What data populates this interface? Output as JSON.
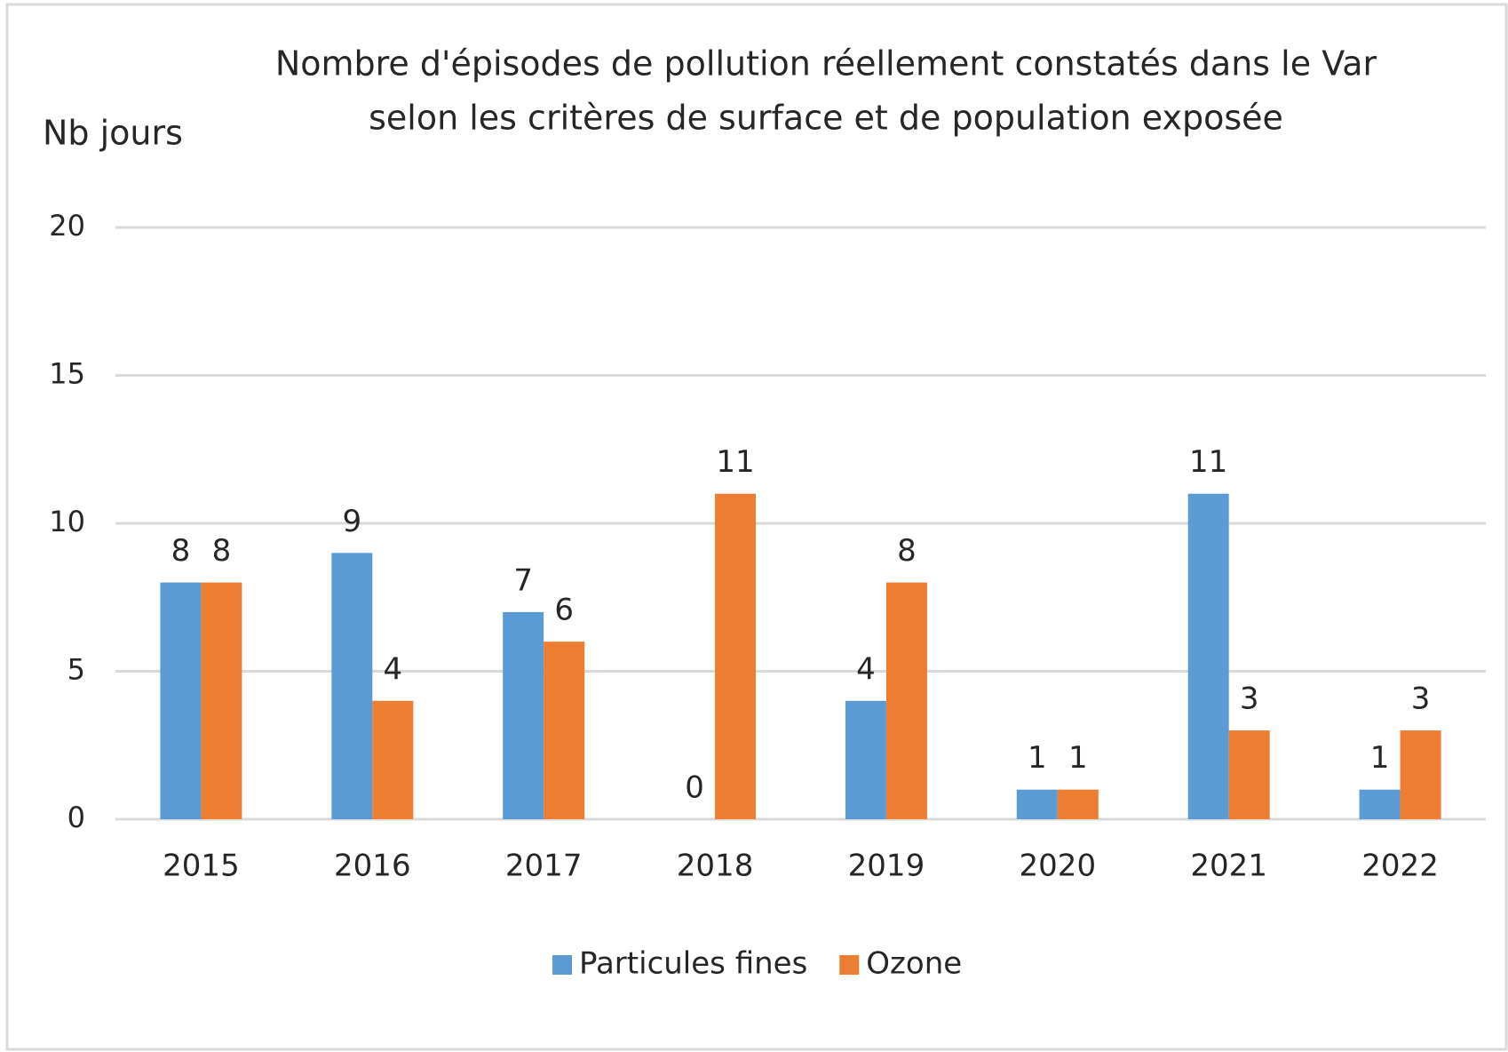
{
  "chart_data": {
    "type": "bar",
    "title": [
      "Nombre d'épisodes de pollution réellement constatés dans le Var",
      "selon les critères de surface et de population exposée"
    ],
    "y_label": "Nb jours",
    "categories": [
      "2015",
      "2016",
      "2017",
      "2018",
      "2019",
      "2020",
      "2021",
      "2022"
    ],
    "series": [
      {
        "name": "Particules fines",
        "color": "#5b9bd5",
        "values": [
          8,
          9,
          7,
          0,
          4,
          1,
          11,
          1
        ]
      },
      {
        "name": "Ozone",
        "color": "#ed7d31",
        "values": [
          8,
          4,
          6,
          11,
          8,
          1,
          3,
          3
        ]
      }
    ],
    "ylim": [
      0,
      20
    ],
    "yticks": [
      0,
      5,
      10,
      15,
      20
    ],
    "grid": true,
    "legend": "bottom"
  }
}
